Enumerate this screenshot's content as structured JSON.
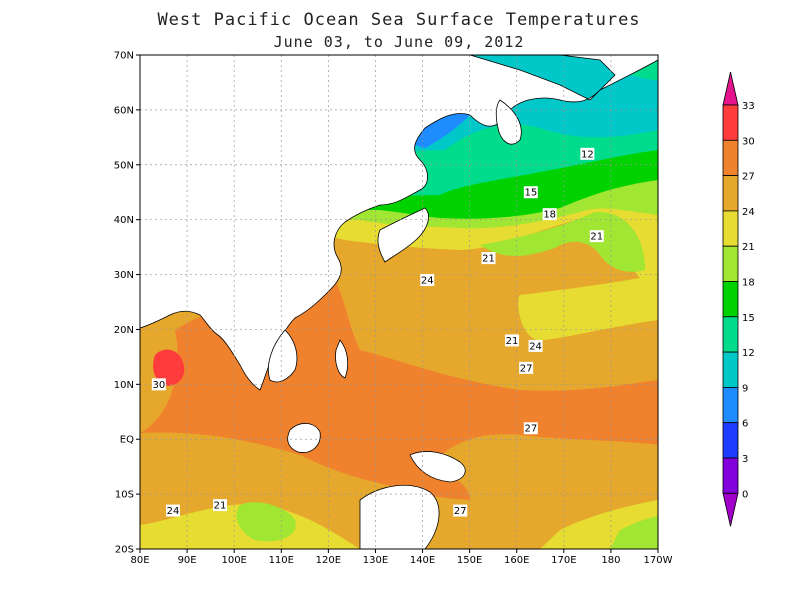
{
  "map": {
    "title": "West Pacific Ocean Sea Surface Temperatures",
    "subtitle": "June 03,  to June 09, 2012",
    "lat_ticks": [
      "70N",
      "60N",
      "50N",
      "40N",
      "30N",
      "20N",
      "10N",
      "EQ",
      "10S",
      "20S"
    ],
    "lon_ticks": [
      "80E",
      "90E",
      "100E",
      "110E",
      "120E",
      "130E",
      "140E",
      "150E",
      "160E",
      "170E",
      "180",
      "170W"
    ],
    "contour_labels": [
      {
        "text": "12",
        "lon": 175,
        "lat": 52
      },
      {
        "text": "15",
        "lon": 163,
        "lat": 45
      },
      {
        "text": "18",
        "lon": 167,
        "lat": 41
      },
      {
        "text": "21",
        "lon": 177,
        "lat": 37
      },
      {
        "text": "21",
        "lon": 154,
        "lat": 33
      },
      {
        "text": "24",
        "lon": 141,
        "lat": 29
      },
      {
        "text": "21",
        "lon": 159,
        "lat": 18
      },
      {
        "text": "24",
        "lon": 164,
        "lat": 17
      },
      {
        "text": "27",
        "lon": 162,
        "lat": 13
      },
      {
        "text": "27",
        "lon": 163,
        "lat": 2
      },
      {
        "text": "30",
        "lon": 84,
        "lat": 10
      },
      {
        "text": "24",
        "lon": 87,
        "lat": -13
      },
      {
        "text": "21",
        "lon": 97,
        "lat": -12
      },
      {
        "text": "27",
        "lon": 148,
        "lat": -13
      }
    ]
  },
  "legend": {
    "levels": [
      "33",
      "30",
      "27",
      "24",
      "21",
      "18",
      "15",
      "12",
      "9",
      "6",
      "3",
      "0"
    ],
    "colors": [
      "#ff3c3c",
      "#f0822d",
      "#e6a82c",
      "#e6dc32",
      "#a0e632",
      "#00d200",
      "#00dc8c",
      "#00c8c8",
      "#1e8cff",
      "#1e3cff",
      "#8200dc"
    ],
    "top_color": "#e6148c",
    "bottom_color": "#a000c8"
  },
  "colors": {
    "warm30": "#ff3c3c",
    "band27": "#f0822d",
    "band24": "#e6a82c",
    "band21": "#e6dc32",
    "band18": "#a0e632",
    "band15": "#00d200",
    "band12": "#00dc8c",
    "band9": "#00c8c8",
    "band6": "#1e8cff",
    "land": "#ffffff"
  }
}
